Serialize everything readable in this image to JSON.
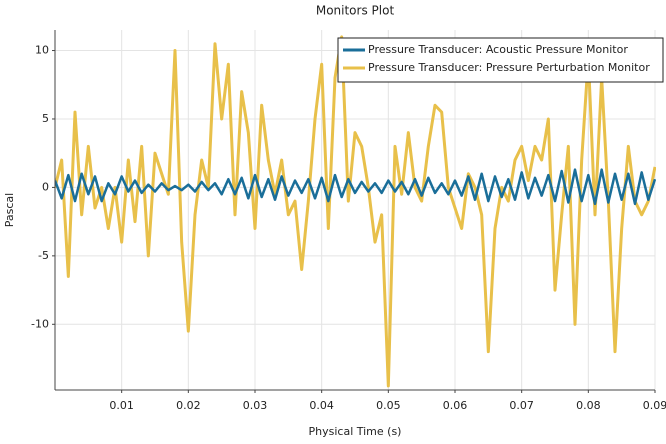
{
  "chart_data": {
    "type": "line",
    "title": "Monitors Plot",
    "x_label": "Physical Time (s)",
    "y_label": "Pascal",
    "x": [
      0,
      0.001,
      0.002,
      0.003,
      0.004,
      0.005,
      0.006,
      0.007,
      0.008,
      0.009,
      0.01,
      0.011,
      0.012,
      0.013,
      0.014,
      0.015,
      0.016,
      0.017,
      0.018,
      0.019,
      0.02,
      0.021,
      0.022,
      0.023,
      0.024,
      0.025,
      0.026,
      0.027,
      0.028,
      0.029,
      0.03,
      0.031,
      0.032,
      0.033,
      0.034,
      0.035,
      0.036,
      0.037,
      0.038,
      0.039,
      0.04,
      0.041,
      0.042,
      0.043,
      0.044,
      0.045,
      0.046,
      0.047,
      0.048,
      0.049,
      0.05,
      0.051,
      0.052,
      0.053,
      0.054,
      0.055,
      0.056,
      0.057,
      0.058,
      0.059,
      0.06,
      0.061,
      0.062,
      0.063,
      0.064,
      0.065,
      0.066,
      0.067,
      0.068,
      0.069,
      0.07,
      0.071,
      0.072,
      0.073,
      0.074,
      0.075,
      0.076,
      0.077,
      0.078,
      0.079,
      0.08,
      0.081,
      0.082,
      0.083,
      0.084,
      0.085,
      0.086,
      0.087,
      0.088,
      0.089,
      0.09
    ],
    "series": [
      {
        "name": "Pressure Transducer: Acoustic Pressure Monitor",
        "color": "#1a6e99",
        "values": [
          0.5,
          -0.8,
          0.9,
          -1,
          1,
          -0.5,
          0.8,
          -1,
          0.3,
          -0.5,
          0.8,
          -0.3,
          0.5,
          -0.4,
          0.2,
          -0.3,
          0.3,
          -0.2,
          0.1,
          -0.2,
          0.2,
          -0.3,
          0.4,
          -0.2,
          0.3,
          -0.5,
          0.6,
          -0.5,
          0.7,
          -0.8,
          0.9,
          -0.7,
          0.6,
          -0.9,
          0.8,
          -0.6,
          0.5,
          -0.4,
          0.6,
          -0.8,
          0.7,
          -1,
          0.9,
          -0.7,
          0.6,
          -0.4,
          0.4,
          -0.3,
          0.3,
          -0.4,
          0.5,
          -0.3,
          0.4,
          -0.5,
          0.6,
          -0.6,
          0.7,
          -0.4,
          0.3,
          -0.5,
          0.5,
          -0.6,
          0.8,
          -0.9,
          1,
          -1,
          0.8,
          -0.7,
          0.6,
          -0.9,
          1.1,
          -0.8,
          0.7,
          -0.6,
          0.9,
          -1,
          1.2,
          -1.1,
          1.3,
          -1,
          0.9,
          -1.2,
          1.3,
          -1.1,
          1,
          -0.9,
          1,
          -1.2,
          1.1,
          -0.9,
          0.6
        ]
      },
      {
        "name": "Pressure Transducer: Pressure Perturbation Monitor",
        "color": "#e8c04a",
        "values": [
          0,
          2,
          -6.5,
          5.5,
          -2,
          3,
          -1.5,
          0,
          -3,
          0,
          -4,
          2,
          -2.5,
          3,
          -5,
          2.5,
          1,
          -0.5,
          10,
          -4,
          -10.5,
          -2,
          2,
          0,
          10.5,
          5,
          9,
          -2,
          7,
          4,
          -3,
          6,
          2,
          -0.5,
          2,
          -2,
          -1,
          -6,
          -1,
          5,
          9,
          -3,
          8,
          11,
          -1,
          4,
          3,
          0,
          -4,
          -2,
          -14.5,
          3,
          -0.5,
          4,
          0,
          -1,
          3,
          6,
          5.5,
          0,
          -1.5,
          -3,
          1,
          0,
          -2,
          -12,
          -3,
          0,
          -1,
          2,
          3,
          0.5,
          3,
          2,
          5,
          -7.5,
          -2,
          3,
          -10,
          2,
          9.5,
          -2,
          8,
          -1,
          -12,
          -3,
          3,
          -1,
          -2,
          -1,
          1.5
        ]
      }
    ],
    "xlim": [
      0,
      0.09
    ],
    "ylim": [
      -14.8,
      11.5
    ],
    "xticks": [
      0.01,
      0.02,
      0.03,
      0.04,
      0.05,
      0.06,
      0.07,
      0.08,
      0.09
    ],
    "yticks": [
      -10,
      -5,
      0,
      5,
      10
    ],
    "grid": true,
    "legend": "top-right"
  }
}
